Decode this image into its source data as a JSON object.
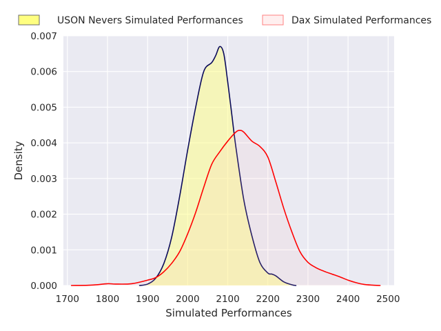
{
  "chart_data": {
    "type": "area",
    "xlabel": "Simulated Performances",
    "ylabel": "Density",
    "xlim": [
      1690,
      2515
    ],
    "ylim": [
      0,
      0.007
    ],
    "x_ticks": [
      1700,
      1800,
      1900,
      2000,
      2100,
      2200,
      2300,
      2400,
      2500
    ],
    "y_ticks": [
      0.0,
      0.001,
      0.002,
      0.003,
      0.004,
      0.005,
      0.006,
      0.007
    ],
    "y_tick_labels": [
      "0.000",
      "0.001",
      "0.002",
      "0.003",
      "0.004",
      "0.005",
      "0.006",
      "0.007"
    ],
    "grid": true,
    "legend_position": "top",
    "series": [
      {
        "name": "USON Nevers Simulated Performances",
        "line_color": "#0a0a5a",
        "fill_color": "#ffff80",
        "filled": true,
        "x": [
          1880,
          1900,
          1920,
          1940,
          1960,
          1980,
          2000,
          2020,
          2040,
          2060,
          2070,
          2080,
          2090,
          2100,
          2110,
          2120,
          2140,
          2160,
          2180,
          2200,
          2210,
          2220,
          2240,
          2260,
          2270
        ],
        "y": [
          0.0,
          4e-05,
          0.0002,
          0.0006,
          0.00135,
          0.0025,
          0.0038,
          0.005,
          0.006,
          0.00625,
          0.00645,
          0.0067,
          0.0065,
          0.0057,
          0.0048,
          0.0039,
          0.0024,
          0.0014,
          0.00065,
          0.00035,
          0.00032,
          0.00027,
          0.0001,
          2e-05,
          0.0
        ]
      },
      {
        "name": "Dax Simulated Performances",
        "line_color": "#ff0000",
        "fill_color": "#ffc0c0",
        "filled": false,
        "x": [
          1710,
          1760,
          1800,
          1820,
          1860,
          1900,
          1920,
          1940,
          1960,
          1980,
          2000,
          2020,
          2040,
          2060,
          2080,
          2100,
          2120,
          2130,
          2140,
          2160,
          2180,
          2200,
          2220,
          2240,
          2260,
          2280,
          2300,
          2320,
          2340,
          2360,
          2380,
          2400,
          2420,
          2440,
          2460,
          2480
        ],
        "y": [
          0.0,
          1e-05,
          5e-05,
          4e-05,
          5e-05,
          0.00015,
          0.00022,
          0.00038,
          0.00062,
          0.00095,
          0.00145,
          0.00205,
          0.00275,
          0.0034,
          0.00375,
          0.00405,
          0.0043,
          0.00435,
          0.0043,
          0.00405,
          0.0039,
          0.0036,
          0.0029,
          0.00215,
          0.0015,
          0.00095,
          0.00065,
          0.0005,
          0.0004,
          0.00032,
          0.00024,
          0.00015,
          8e-05,
          3e-05,
          1e-05,
          0.0
        ]
      }
    ]
  }
}
